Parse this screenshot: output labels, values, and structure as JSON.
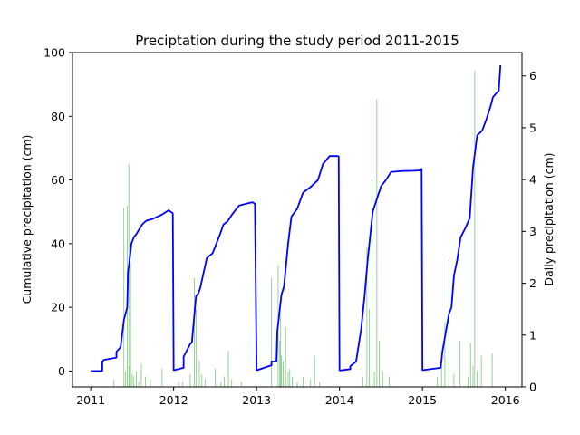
{
  "chart_data": {
    "type": "line",
    "title": "Preciptation during the study period 2011-2015",
    "xlabel": "",
    "ylabel": "Cumulative precipitation (cm)",
    "y2label": "Daily precipitation (cm)",
    "xlim": [
      2010.78,
      2016.2
    ],
    "ylim": [
      -5,
      100
    ],
    "y2lim": [
      0,
      6.45
    ],
    "xticks": [
      2011,
      2012,
      2013,
      2014,
      2015,
      2016
    ],
    "xtick_labels": [
      "2011",
      "2012",
      "2013",
      "2014",
      "2015",
      "2016"
    ],
    "yticks": [
      0,
      20,
      40,
      60,
      80,
      100
    ],
    "y2ticks": [
      0,
      1,
      2,
      3,
      4,
      5,
      6
    ],
    "grid": false,
    "series": [
      {
        "kind": "line",
        "axis": "left",
        "color": "#0000ff",
        "x": [
          2011.0,
          2011.14,
          2011.14,
          2011.16,
          2011.31,
          2011.31,
          2011.36,
          2011.4,
          2011.41,
          2011.44,
          2011.45,
          2011.47,
          2011.49,
          2011.52,
          2011.55,
          2011.62,
          2011.66,
          2011.68,
          2011.75,
          2011.85,
          2011.94,
          2011.99,
          2012.0,
          2012.01,
          2012.12,
          2012.12,
          2012.2,
          2012.22,
          2012.27,
          2012.3,
          2012.32,
          2012.4,
          2012.47,
          2012.5,
          2012.56,
          2012.6,
          2012.65,
          2012.7,
          2012.76,
          2012.79,
          2012.95,
          2012.98,
          2013.0,
          2013.01,
          2013.18,
          2013.18,
          2013.24,
          2013.25,
          2013.3,
          2013.33,
          2013.38,
          2013.42,
          2013.49,
          2013.56,
          2013.66,
          2013.74,
          2013.8,
          2013.88,
          2013.98,
          2013.99,
          2014.0,
          2014.01,
          2014.13,
          2014.13,
          2014.2,
          2014.26,
          2014.3,
          2014.34,
          2014.4,
          2014.45,
          2014.5,
          2014.56,
          2014.62,
          2014.75,
          2014.9,
          2014.98,
          2014.99,
          2015.0,
          2015.01,
          2015.22,
          2015.24,
          2015.32,
          2015.35,
          2015.38,
          2015.42,
          2015.46,
          2015.52,
          2015.57,
          2015.61,
          2015.66,
          2015.72,
          2015.77,
          2015.82,
          2015.85,
          2015.9,
          2015.92,
          2015.94
        ],
        "y": [
          0.0,
          0.0,
          3.0,
          3.5,
          4.2,
          6.0,
          7.5,
          16.0,
          17.0,
          20.0,
          31.0,
          35.0,
          40.0,
          42.0,
          43.0,
          46.0,
          47.0,
          47.3,
          47.8,
          49.0,
          50.5,
          49.5,
          0.3,
          0.3,
          1.0,
          4.5,
          8.5,
          9.0,
          23.5,
          24.5,
          26.0,
          35.5,
          37.0,
          39.0,
          43.0,
          46.0,
          47.0,
          49.0,
          51.0,
          52.0,
          53.0,
          52.5,
          0.3,
          0.3,
          1.8,
          3.0,
          3.0,
          12.5,
          24.0,
          26.5,
          40.0,
          48.5,
          51.0,
          56.0,
          58.0,
          60.0,
          65.0,
          67.5,
          67.5,
          67.3,
          0.2,
          0.2,
          0.6,
          1.5,
          3.0,
          13.0,
          23.0,
          35.0,
          50.0,
          54.0,
          58.0,
          60.0,
          62.5,
          62.8,
          62.9,
          63.0,
          63.5,
          0.3,
          0.3,
          1.0,
          6.0,
          18.0,
          20.0,
          30.0,
          35.0,
          42.0,
          45.0,
          48.0,
          64.0,
          74.0,
          75.5,
          79.0,
          83.0,
          86.0,
          87.5,
          88.0,
          96.0
        ]
      },
      {
        "kind": "bar",
        "axis": "right",
        "color": "#2ca02c",
        "x": [
          2011.28,
          2011.4,
          2011.42,
          2011.44,
          2011.46,
          2011.47,
          2011.48,
          2011.5,
          2011.52,
          2011.55,
          2011.58,
          2011.61,
          2011.66,
          2011.72,
          2011.86,
          2012.06,
          2012.11,
          2012.2,
          2012.25,
          2012.27,
          2012.31,
          2012.34,
          2012.38,
          2012.5,
          2012.57,
          2012.61,
          2012.66,
          2012.7,
          2012.82,
          2013.18,
          2013.26,
          2013.28,
          2013.29,
          2013.3,
          2013.32,
          2013.35,
          2013.38,
          2013.4,
          2013.43,
          2013.49,
          2013.56,
          2013.65,
          2013.7,
          2013.76,
          2014.28,
          2014.33,
          2014.36,
          2014.39,
          2014.42,
          2014.45,
          2014.48,
          2014.52,
          2014.6,
          2015.18,
          2015.23,
          2015.27,
          2015.32,
          2015.38,
          2015.45,
          2015.55,
          2015.58,
          2015.61,
          2015.63,
          2015.66,
          2015.71,
          2015.84
        ],
        "y": [
          0.15,
          3.45,
          0.3,
          3.5,
          4.3,
          0.4,
          2.4,
          0.25,
          0.2,
          0.3,
          0.1,
          0.45,
          0.2,
          0.15,
          0.35,
          0.1,
          0.1,
          0.25,
          2.1,
          1.5,
          0.5,
          0.25,
          0.15,
          0.35,
          0.1,
          0.2,
          0.7,
          0.15,
          0.1,
          2.1,
          2.35,
          0.9,
          1.4,
          0.6,
          0.5,
          1.15,
          0.3,
          0.35,
          0.2,
          0.1,
          0.2,
          0.15,
          0.6,
          0.1,
          0.2,
          2.7,
          1.5,
          4.0,
          0.3,
          5.55,
          0.9,
          0.3,
          0.2,
          0.2,
          0.4,
          1.25,
          2.45,
          0.25,
          0.9,
          0.2,
          0.85,
          0.4,
          6.1,
          0.3,
          0.6,
          0.65
        ]
      }
    ]
  }
}
